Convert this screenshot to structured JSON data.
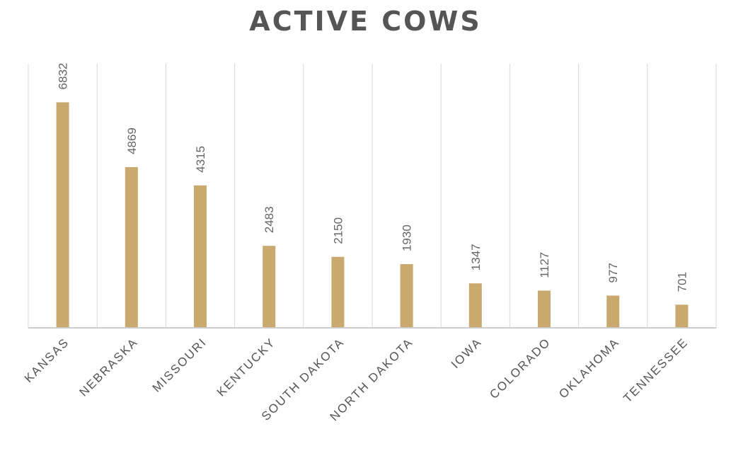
{
  "title": "ACTIVE COWS",
  "colors": {
    "bar": "#c9a96e",
    "grid": "#d9d9d9",
    "axis": "#cccccc",
    "title": "#555555",
    "label": "#666666"
  },
  "chart_data": {
    "type": "bar",
    "title": "ACTIVE COWS",
    "xlabel": "",
    "ylabel": "",
    "categories": [
      "KANSAS",
      "NEBRASKA",
      "MISSOURI",
      "KENTUCKY",
      "SOUTH DAKOTA",
      "NORTH DAKOTA",
      "IOWA",
      "COLORADO",
      "OKLAHOMA",
      "TENNESSEE"
    ],
    "values": [
      6832,
      4869,
      4315,
      2483,
      2150,
      1930,
      1347,
      1127,
      977,
      701
    ],
    "ylim": [
      0,
      8000
    ],
    "grid": true,
    "legend": "none"
  }
}
